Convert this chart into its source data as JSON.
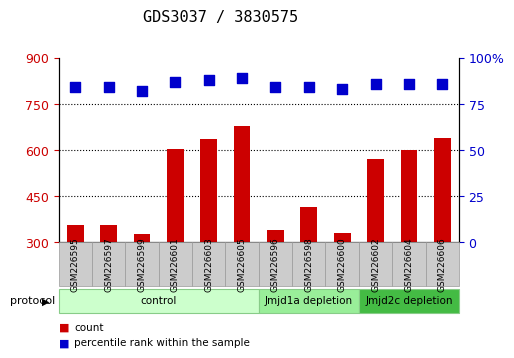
{
  "title": "GDS3037 / 3830575",
  "samples": [
    "GSM226595",
    "GSM226597",
    "GSM226599",
    "GSM226601",
    "GSM226603",
    "GSM226605",
    "GSM226596",
    "GSM226598",
    "GSM226600",
    "GSM226602",
    "GSM226604",
    "GSM226606"
  ],
  "counts": [
    355,
    355,
    325,
    605,
    635,
    680,
    340,
    415,
    330,
    570,
    600,
    640
  ],
  "percentile_ranks": [
    84,
    84,
    82,
    87,
    88,
    89,
    84,
    84,
    83,
    86,
    86,
    86
  ],
  "ylim_left": [
    300,
    900
  ],
  "ylim_right": [
    0,
    100
  ],
  "yticks_left": [
    300,
    450,
    600,
    750,
    900
  ],
  "yticks_right": [
    0,
    25,
    50,
    75,
    100
  ],
  "bar_color": "#cc0000",
  "dot_color": "#0000cc",
  "bg_color": "#ffffff",
  "protocol_groups": [
    {
      "label": "control",
      "start": 0,
      "end": 6,
      "color": "#ccffcc"
    },
    {
      "label": "Jmjd1a depletion",
      "start": 6,
      "end": 9,
      "color": "#99ee99"
    },
    {
      "label": "Jmjd2c depletion",
      "start": 9,
      "end": 12,
      "color": "#44bb44"
    }
  ],
  "legend_count_label": "count",
  "legend_percentile_label": "percentile rank within the sample",
  "protocol_label": "protocol",
  "bar_width": 0.5,
  "dot_size": 55,
  "title_fontsize": 11,
  "tick_fontsize": 9,
  "grid_ticks": [
    450,
    600,
    750
  ],
  "box_color": "#cccccc",
  "box_border": "#999999",
  "proto_border": "#88cc88"
}
